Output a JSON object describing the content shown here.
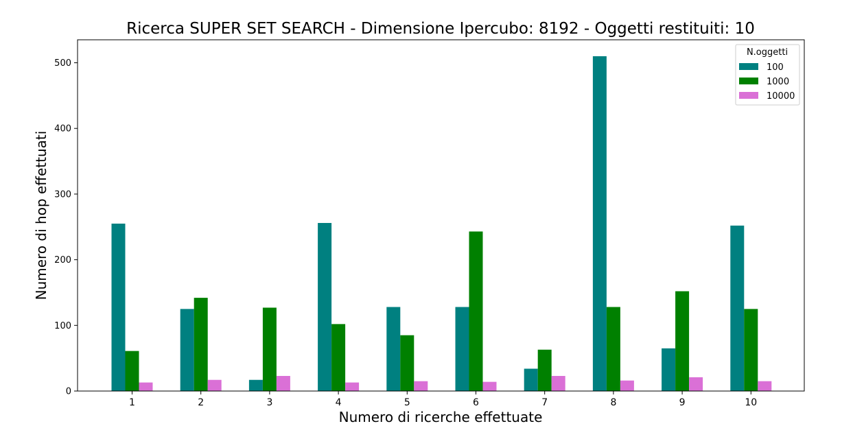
{
  "chart_data": {
    "type": "bar",
    "title": "Ricerca SUPER SET SEARCH - Dimensione Ipercubo: 8192 - Oggetti restituiti: 10",
    "xlabel": "Numero di ricerche effettuate",
    "ylabel": "Numero di hop effettuati",
    "categories": [
      "1",
      "2",
      "3",
      "4",
      "5",
      "6",
      "7",
      "8",
      "9",
      "10"
    ],
    "ylim": [
      0,
      535
    ],
    "yticks": [
      0,
      100,
      200,
      300,
      400,
      500
    ],
    "legend": {
      "title": "N.oggetti",
      "placement": "top-right"
    },
    "grid": false,
    "series": [
      {
        "name": "100",
        "color": "#008080",
        "values": [
          255,
          125,
          17,
          256,
          128,
          128,
          34,
          510,
          65,
          252
        ]
      },
      {
        "name": "1000",
        "color": "#008000",
        "values": [
          61,
          142,
          127,
          102,
          85,
          243,
          63,
          128,
          152,
          125
        ]
      },
      {
        "name": "10000",
        "color": "#da70d6",
        "values": [
          13,
          17,
          23,
          13,
          15,
          14,
          23,
          16,
          21,
          15
        ]
      }
    ]
  }
}
